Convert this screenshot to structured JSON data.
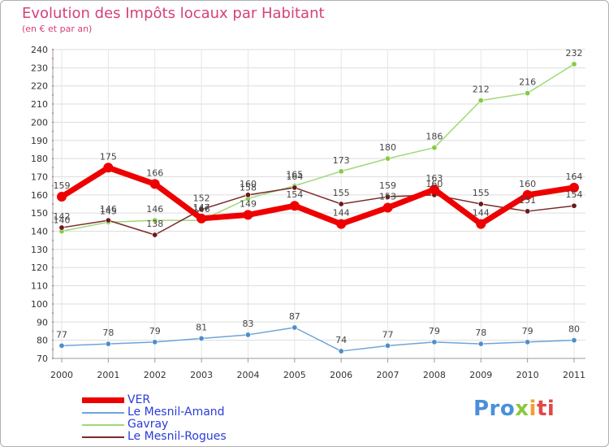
{
  "chart_data": {
    "type": "line",
    "title": "Evolution des Impôts locaux par Habitant",
    "subtitle": "(en € et par an)",
    "xlabel": "",
    "ylabel": "",
    "ylim": [
      70,
      240
    ],
    "y_ticks": [
      70,
      80,
      90,
      100,
      110,
      120,
      130,
      140,
      150,
      160,
      170,
      180,
      190,
      200,
      210,
      220,
      230,
      240
    ],
    "categories": [
      "2000",
      "2001",
      "2002",
      "2003",
      "2004",
      "2005",
      "2006",
      "2007",
      "2008",
      "2009",
      "2010",
      "2011"
    ],
    "series": [
      {
        "name": "VER",
        "color": "#ee0000",
        "point_color": "#ee0000",
        "values": [
          159,
          175,
          166,
          147,
          149,
          154,
          144,
          153,
          163,
          144,
          160,
          164
        ]
      },
      {
        "name": "Le Mesnil-Amand",
        "color": "#6fa4d8",
        "point_color": "#4f8ec8",
        "values": [
          77,
          78,
          79,
          81,
          83,
          87,
          74,
          77,
          79,
          78,
          79,
          80
        ]
      },
      {
        "name": "Gavray",
        "color": "#a0d878",
        "point_color": "#84cc44",
        "values": [
          140,
          145,
          146,
          146,
          158,
          165,
          173,
          180,
          186,
          212,
          216,
          232
        ]
      },
      {
        "name": "Le Mesnil-Rogues",
        "color": "#7a2a2a",
        "point_color": "#6a1a1a",
        "values": [
          142,
          146,
          138,
          152,
          160,
          164,
          155,
          159,
          160,
          155,
          151,
          154
        ]
      }
    ]
  },
  "legend": {
    "items": [
      {
        "label": "VER",
        "color": "#ee0000"
      },
      {
        "label": "Le Mesnil-Amand",
        "color": "#6fa4d8"
      },
      {
        "label": "Gavray",
        "color": "#a0d878"
      },
      {
        "label": "Le Mesnil-Rogues",
        "color": "#7a2a2a"
      }
    ]
  },
  "logo": {
    "part1": "Pro",
    "part2": "x",
    "part3": "i",
    "part4": "ti"
  }
}
